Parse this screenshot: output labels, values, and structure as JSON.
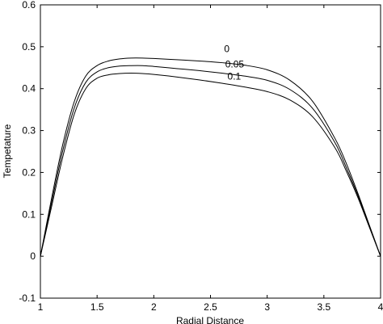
{
  "chart_data": {
    "type": "line",
    "xlabel": "Radial Distance",
    "ylabel": "Tempetature",
    "xlim": [
      1,
      4
    ],
    "ylim": [
      -0.1,
      0.6
    ],
    "grid": false,
    "x_ticks": [
      "1",
      "1.5",
      "2",
      "2.5",
      "3",
      "3.5",
      "4"
    ],
    "y_ticks": [
      "-0.1",
      "0",
      "0.1",
      "0.2",
      "0.3",
      "0.4",
      "0.5",
      "0.6"
    ],
    "x_tick_values": [
      1,
      1.5,
      2,
      2.5,
      3,
      3.5,
      4
    ],
    "y_tick_values": [
      -0.1,
      0,
      0.1,
      0.2,
      0.3,
      0.4,
      0.5,
      0.6
    ],
    "x": [
      1.0,
      1.1,
      1.2,
      1.3,
      1.4,
      1.5,
      1.6,
      1.7,
      1.8,
      1.9,
      2.0,
      2.2,
      2.4,
      2.6,
      2.8,
      3.0,
      3.2,
      3.4,
      3.6,
      3.7,
      3.8,
      3.9,
      4.0
    ],
    "series": [
      {
        "label": "0",
        "label_x": 2.62,
        "label_y": 0.487,
        "values": [
          0.0,
          0.14,
          0.27,
          0.37,
          0.43,
          0.455,
          0.466,
          0.471,
          0.473,
          0.473,
          0.472,
          0.469,
          0.466,
          0.462,
          0.456,
          0.445,
          0.42,
          0.37,
          0.28,
          0.22,
          0.15,
          0.075,
          0.0
        ]
      },
      {
        "label": "0.05",
        "label_x": 2.63,
        "label_y": 0.451,
        "values": [
          0.0,
          0.13,
          0.255,
          0.355,
          0.415,
          0.44,
          0.45,
          0.454,
          0.455,
          0.455,
          0.453,
          0.448,
          0.443,
          0.437,
          0.43,
          0.42,
          0.398,
          0.353,
          0.27,
          0.21,
          0.145,
          0.072,
          0.0
        ]
      },
      {
        "label": "0.1",
        "label_x": 2.65,
        "label_y": 0.422,
        "values": [
          0.0,
          0.12,
          0.24,
          0.34,
          0.4,
          0.425,
          0.433,
          0.436,
          0.437,
          0.436,
          0.434,
          0.428,
          0.421,
          0.413,
          0.404,
          0.393,
          0.373,
          0.333,
          0.258,
          0.202,
          0.14,
          0.07,
          0.0
        ]
      }
    ]
  }
}
